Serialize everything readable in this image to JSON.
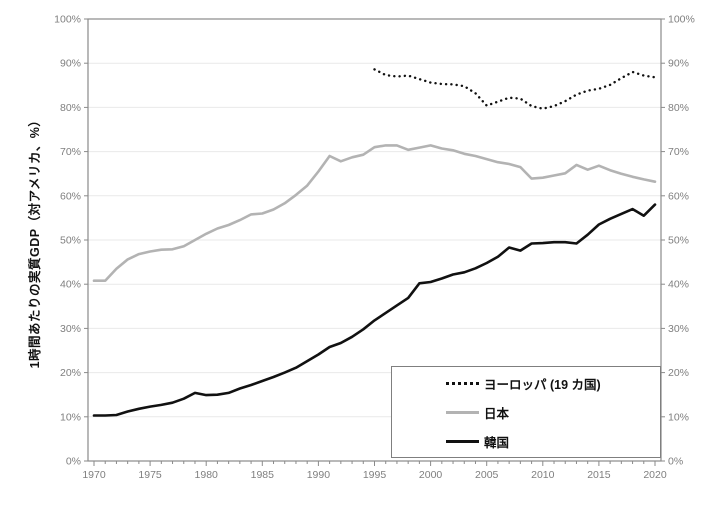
{
  "legend": {
    "position": "lower-right",
    "entries": [
      {
        "label": "ヨーロッパ (19 カ国)",
        "series_id": "europe",
        "style": "dotted",
        "color": "#111111"
      },
      {
        "label": "日本",
        "series_id": "japan",
        "style": "solid",
        "color": "#b3b3b3"
      },
      {
        "label": "韓国",
        "series_id": "korea",
        "style": "solid",
        "color": "#111111"
      }
    ]
  },
  "chart_data": {
    "type": "line",
    "title": "",
    "xlabel": "",
    "ylabel": "1時間あたりの実質GDP（対アメリカ、%）",
    "x_range": [
      1970,
      2020
    ],
    "ylim": [
      0,
      100
    ],
    "y_tick_step": 10,
    "grid": "horizontal",
    "y_tick_labels": [
      "0%",
      "10%",
      "20%",
      "30%",
      "40%",
      "50%",
      "60%",
      "70%",
      "80%",
      "90%",
      "100%"
    ],
    "x_tick_labels": [
      "1970",
      "1975",
      "1980",
      "1985",
      "1990",
      "1995",
      "2000",
      "2005",
      "2010",
      "2015",
      "2020"
    ],
    "legend_position": "lower-right",
    "series": [
      {
        "id": "japan",
        "name": "日本",
        "style": "solid",
        "color": "#b3b3b3",
        "start_year": 1970,
        "values": [
          40.8,
          40.8,
          43.5,
          45.6,
          46.8,
          47.4,
          47.8,
          47.9,
          48.6,
          50.0,
          51.4,
          52.6,
          53.4,
          54.5,
          55.8,
          56.0,
          56.9,
          58.3,
          60.2,
          62.3,
          65.5,
          69.0,
          67.8,
          68.7,
          69.3,
          71.0,
          71.4,
          71.4,
          70.4,
          70.9,
          71.4,
          70.7,
          70.3,
          69.5,
          69.0,
          68.3,
          67.6,
          67.2,
          66.5,
          63.9,
          64.1,
          64.6,
          65.1,
          67.0,
          65.9,
          66.8,
          65.8,
          65.0,
          64.3,
          63.7,
          63.2
        ]
      },
      {
        "id": "korea",
        "name": "韓国",
        "style": "solid",
        "color": "#111111",
        "start_year": 1970,
        "values": [
          10.3,
          10.3,
          10.4,
          11.2,
          11.8,
          12.3,
          12.7,
          13.2,
          14.1,
          15.4,
          14.9,
          15.0,
          15.4,
          16.4,
          17.2,
          18.1,
          19.0,
          20.0,
          21.1,
          22.6,
          24.1,
          25.8,
          26.7,
          28.1,
          29.8,
          31.8,
          33.5,
          35.2,
          36.9,
          40.2,
          40.5,
          41.3,
          42.2,
          42.7,
          43.6,
          44.8,
          46.2,
          48.3,
          47.6,
          49.2,
          49.3,
          49.5,
          49.5,
          49.2,
          51.2,
          53.5,
          54.8,
          55.9,
          57.0,
          55.5,
          58.0
        ]
      },
      {
        "id": "europe",
        "name": "ヨーロッパ (19 カ国)",
        "style": "dotted",
        "color": "#111111",
        "start_year": 1995,
        "values": [
          88.6,
          87.3,
          87.0,
          87.2,
          86.4,
          85.6,
          85.3,
          85.2,
          84.8,
          83.2,
          80.4,
          81.3,
          82.2,
          82.0,
          80.3,
          79.7,
          80.3,
          81.4,
          82.9,
          83.8,
          84.2,
          85.1,
          86.6,
          88.0,
          87.2,
          86.8
        ]
      }
    ]
  },
  "colors": {
    "background": "#ffffff",
    "grid": "#e9e9e9",
    "axis": "#8a8a8a",
    "tick_label": "#7f7f7f",
    "text": "#111111",
    "japan_line": "#b3b3b3",
    "korea_line": "#111111",
    "europe_line": "#111111"
  }
}
